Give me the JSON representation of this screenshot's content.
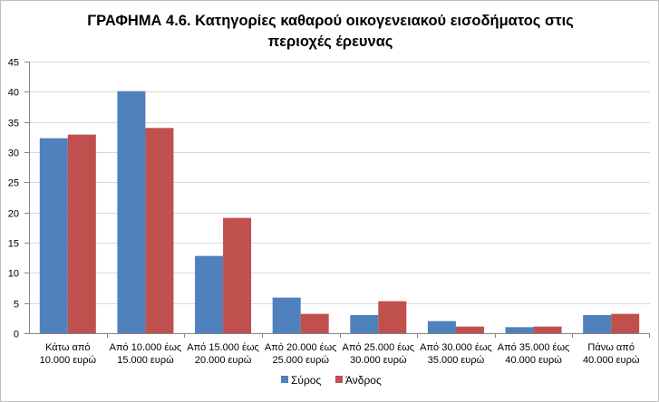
{
  "chart_data": {
    "type": "bar",
    "title_lines": [
      "ΓΡΑΦΗΜΑ 4.6. Κατηγορίες καθαρού οικογενειακού εισοδήματος στις",
      "περιοχές έρευνας"
    ],
    "categories": [
      [
        "Κάτω από",
        "10.000 ευρώ"
      ],
      [
        "Από 10.000 έως",
        "15.000 ευρώ"
      ],
      [
        "Από 15.000 έως",
        "20.000 ευρώ"
      ],
      [
        "Από 20.000 έως",
        "25.000 ευρώ"
      ],
      [
        "Από 25.000 έως",
        "30.000 ευρώ"
      ],
      [
        "Από 30.000 έως",
        "35.000 ευρώ"
      ],
      [
        "Από 35.000 έως",
        "40.000 ευρώ"
      ],
      [
        "Πάνω από",
        "40.000 ευρώ"
      ]
    ],
    "series": [
      {
        "name": "Σύρος",
        "color": "#4F81BD",
        "values": [
          32.3,
          40.1,
          12.8,
          5.9,
          3.0,
          2.0,
          1.0,
          3.0
        ]
      },
      {
        "name": "Άνδρος",
        "color": "#C0504D",
        "values": [
          32.9,
          34.0,
          19.1,
          3.2,
          5.3,
          1.1,
          1.1,
          3.2
        ]
      }
    ],
    "ylim": [
      0,
      45
    ],
    "yticks": [
      0,
      5,
      10,
      15,
      20,
      25,
      30,
      35,
      40,
      45
    ],
    "grid": true,
    "legend_position": "bottom"
  }
}
